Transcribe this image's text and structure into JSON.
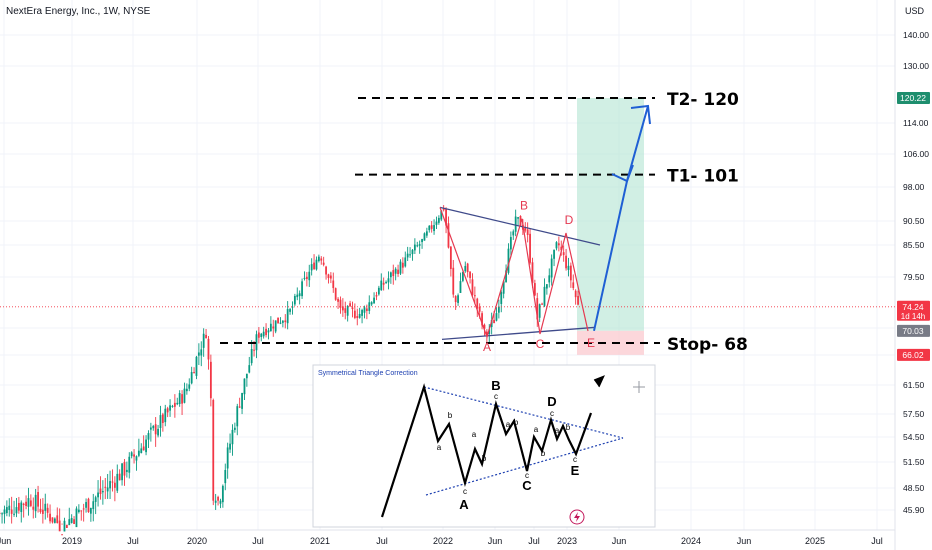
{
  "header": {
    "title": "NextEra Energy, Inc., 1W, NYSE",
    "currency": "USD"
  },
  "chart_data": {
    "type": "candlestick",
    "symbol": "NextEra Energy, Inc.",
    "interval": "1W",
    "exchange": "NYSE",
    "ylim": [
      45,
      146
    ],
    "y_ticks": [
      45.9,
      48.5,
      51.5,
      54.5,
      57.5,
      61.5,
      66.0,
      70.5,
      79.5,
      85.5,
      90.5,
      98.0,
      106.0,
      114.0,
      130.0,
      140.0
    ],
    "y_tick_labels": [
      "45.90",
      "48.50",
      "51.50",
      "54.50",
      "57.50",
      "61.50",
      "66.00",
      "70.50",
      "79.50",
      "85.50",
      "90.50",
      "98.00",
      "106.00",
      "114.00",
      "130.00",
      "140.00"
    ],
    "x_tick_labels": [
      "Jun",
      "2019",
      "Jul",
      "2020",
      "Jul",
      "2021",
      "Jul",
      "2022",
      "Jun",
      "Jul",
      "2023",
      "Jun",
      "2024",
      "Jun",
      "2025",
      "Jul"
    ],
    "price_badges": [
      {
        "label": "120.22",
        "value": 120.22,
        "color": "#1e8e6e"
      },
      {
        "label": "74.24",
        "sublabel": "1d 14h",
        "value": 74.24,
        "color": "#f23645"
      },
      {
        "label": "70.03",
        "value": 70.03,
        "color": "#787b86"
      },
      {
        "label": "66.02",
        "value": 66.02,
        "color": "#f23645"
      }
    ],
    "price_series": [
      [
        "2018-06",
        45.5
      ],
      [
        "2018-09",
        47.2
      ],
      [
        "2018-12",
        44.0
      ],
      [
        "2019-03",
        47.0
      ],
      [
        "2019-06",
        50.5
      ],
      [
        "2019-09",
        55.5
      ],
      [
        "2019-12",
        60.5
      ],
      [
        "2020-02",
        70.0
      ],
      [
        "2020-03",
        46.0
      ],
      [
        "2020-05",
        58.0
      ],
      [
        "2020-07",
        69.5
      ],
      [
        "2020-10",
        73.0
      ],
      [
        "2020-12",
        80.5
      ],
      [
        "2021-01",
        84.0
      ],
      [
        "2021-03",
        73.5
      ],
      [
        "2021-05",
        73.0
      ],
      [
        "2021-07",
        78.0
      ],
      [
        "2021-09",
        82.0
      ],
      [
        "2021-11",
        86.5
      ],
      [
        "2022-01",
        93.5
      ],
      [
        "2022-02",
        74.0
      ],
      [
        "2022-03",
        82.0
      ],
      [
        "2022-05",
        69.0
      ],
      [
        "2022-06",
        72.5
      ],
      [
        "2022-08",
        91.0
      ],
      [
        "2022-09",
        88.5
      ],
      [
        "2022-10",
        72.0
      ],
      [
        "2022-12",
        86.0
      ],
      [
        "2023-01",
        81.0
      ],
      [
        "2023-02",
        74.24
      ]
    ],
    "levels": [
      {
        "label": "T2- 120",
        "value": 120.22
      },
      {
        "label": "T1- 101",
        "value": 101.0
      },
      {
        "label": "Stop- 68",
        "value": 68.0
      }
    ],
    "wave_points": [
      {
        "label": "",
        "date": "2022-01",
        "value": 93.5
      },
      {
        "label": "A",
        "date": "2022-05",
        "value": 69.0
      },
      {
        "label": "B",
        "date": "2022-08",
        "value": 91.0
      },
      {
        "label": "C",
        "date": "2022-10",
        "value": 69.5
      },
      {
        "label": "D",
        "date": "2022-12",
        "value": 88.0
      },
      {
        "label": "E",
        "date": "2023-02",
        "value": 70.0
      }
    ],
    "projection": [
      {
        "date": "2023-02",
        "value": 70.0
      },
      {
        "date": "2023-04",
        "value": 99.0
      },
      {
        "date": "2023-05",
        "value": 118.5
      }
    ],
    "inset": {
      "title": "Symmetrical Triangle Correction",
      "major_labels": [
        "A",
        "B",
        "C",
        "D",
        "E"
      ],
      "minor_labels": [
        "a",
        "b",
        "c",
        "a",
        "b",
        "c",
        "a",
        "b",
        "c",
        "a",
        "b",
        "c",
        "a",
        "b",
        "c"
      ]
    }
  }
}
